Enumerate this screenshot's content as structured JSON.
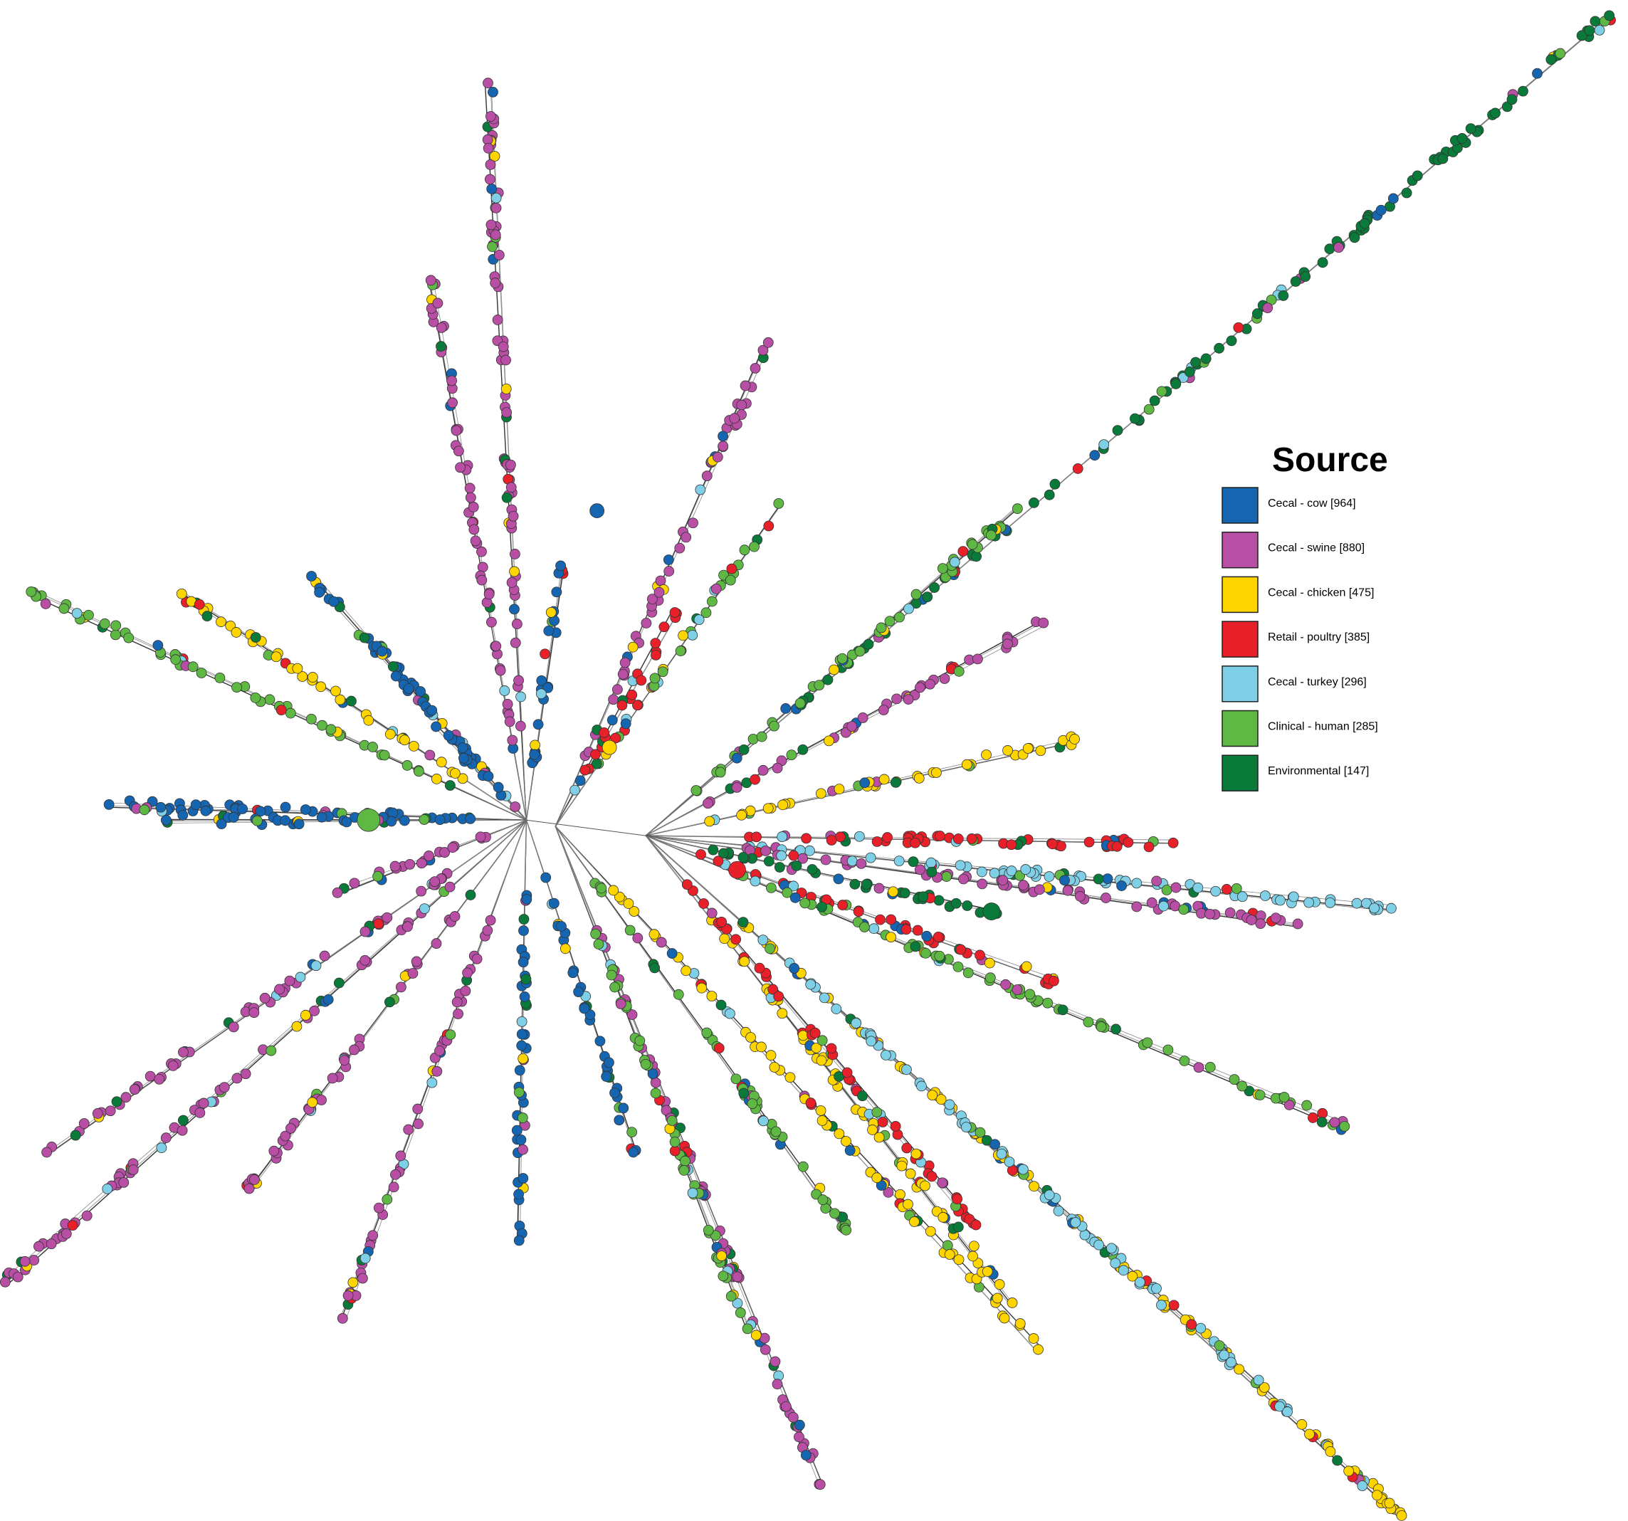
{
  "legend": {
    "title": "Source",
    "items": [
      {
        "label": "Cecal - cow [964]",
        "color": "#1565b0"
      },
      {
        "label": "Cecal - swine [880]",
        "color": "#b84fa5"
      },
      {
        "label": "Cecal - chicken [475]",
        "color": "#ffd500"
      },
      {
        "label": "Retail - poultry [385]",
        "color": "#e8202a"
      },
      {
        "label": "Cecal - turkey [296]",
        "color": "#7fd0e6"
      },
      {
        "label": "Clinical - human [285]",
        "color": "#5fb844"
      },
      {
        "label": "Environmental [147]",
        "color": "#0a7a3a"
      }
    ]
  }
}
